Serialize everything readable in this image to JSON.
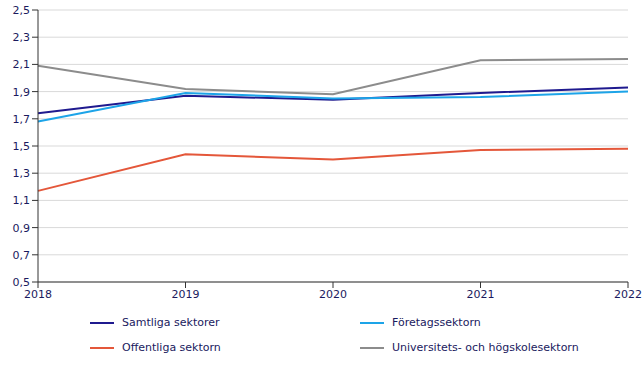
{
  "chart_data": {
    "type": "line",
    "categories": [
      "2018",
      "2019",
      "2020",
      "2021",
      "2022"
    ],
    "series": [
      {
        "name": "Samtliga sektorer",
        "color": "#1f1a8f",
        "values": [
          1.74,
          1.87,
          1.84,
          1.89,
          1.93
        ]
      },
      {
        "name": "Företagssektorn",
        "color": "#1da4e8",
        "values": [
          1.68,
          1.89,
          1.85,
          1.86,
          1.9
        ]
      },
      {
        "name": "Offentliga sektorn",
        "color": "#e4573a",
        "values": [
          1.17,
          1.44,
          1.4,
          1.47,
          1.48
        ]
      },
      {
        "name": "Universitets- och högskolesektorn",
        "color": "#8c8c8c",
        "values": [
          2.09,
          1.92,
          1.88,
          2.13,
          2.14
        ]
      }
    ],
    "ylim": [
      0.5,
      2.5
    ],
    "yticks": [
      {
        "value": 0.5,
        "label": "0,5"
      },
      {
        "value": 0.7,
        "label": "0,7"
      },
      {
        "value": 0.9,
        "label": "0,9"
      },
      {
        "value": 1.1,
        "label": "1,1"
      },
      {
        "value": 1.3,
        "label": "1,3"
      },
      {
        "value": 1.5,
        "label": "1,5"
      },
      {
        "value": 1.7,
        "label": "1,7"
      },
      {
        "value": 1.9,
        "label": "1,9"
      },
      {
        "value": 2.1,
        "label": "2,1"
      },
      {
        "value": 2.3,
        "label": "2,3"
      },
      {
        "value": 2.5,
        "label": "2,5"
      }
    ],
    "grid": true,
    "legend": "bottom"
  }
}
